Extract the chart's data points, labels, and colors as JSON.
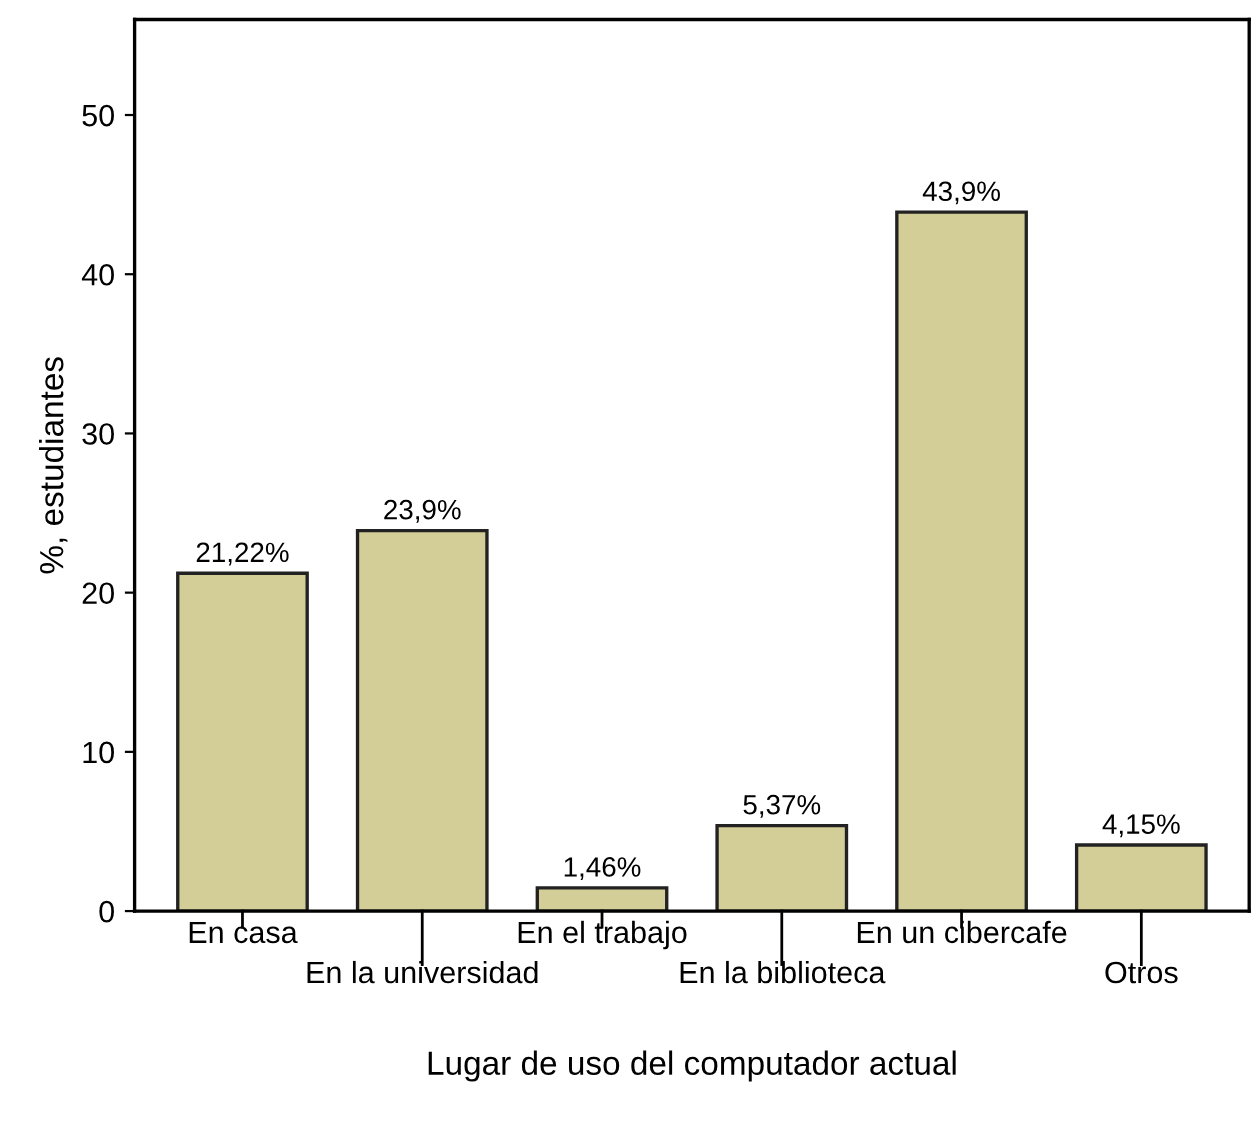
{
  "chart_data": {
    "type": "bar",
    "xlabel": "Lugar de uso del computador actual",
    "ylabel": "%, estudiantes",
    "categories": [
      "En casa",
      "En la universidad",
      "En el trabajo",
      "En la biblioteca",
      "En un cibercafe",
      "Otros"
    ],
    "values": [
      21.22,
      23.9,
      1.46,
      5.37,
      43.9,
      4.15
    ],
    "value_labels": [
      "21,22%",
      "23,9%",
      "1,46%",
      "5,37%",
      "43,9%",
      "4,15%"
    ],
    "color": "#d3cd97",
    "ylim": [
      0,
      56
    ],
    "yticks": [
      0,
      10,
      20,
      30,
      40,
      50
    ],
    "grid": false,
    "legend": false
  }
}
